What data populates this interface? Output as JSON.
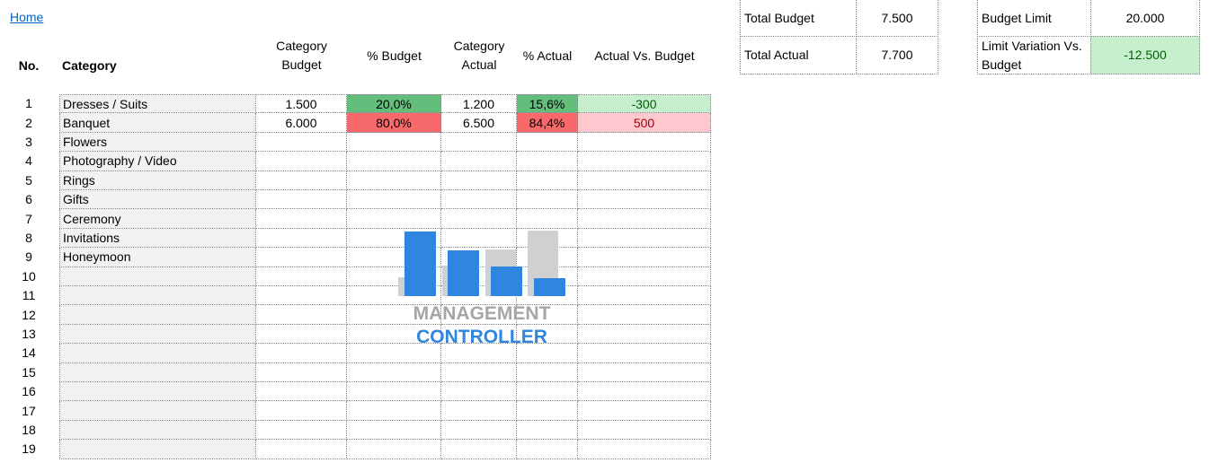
{
  "nav": {
    "home": "Home"
  },
  "table": {
    "headers": {
      "no": "No.",
      "category": "Category",
      "budget": "Category Budget",
      "pct_budget": "% Budget",
      "actual": "Category Actual",
      "pct_actual": "% Actual",
      "variance": "Actual Vs. Budget"
    },
    "rows": [
      {
        "no": 1,
        "category": "Dresses / Suits",
        "budget": "1.500",
        "pct_budget": "20,0%",
        "actual": "1.200",
        "pct_actual": "15,6%",
        "variance": "-300",
        "fills": {
          "pct_budget": "#63be7b",
          "pct_actual": "#63be7b",
          "variance": "#c6efce"
        },
        "text_colors": {
          "variance": "#006100"
        }
      },
      {
        "no": 2,
        "category": "Banquet",
        "budget": "6.000",
        "pct_budget": "80,0%",
        "actual": "6.500",
        "pct_actual": "84,4%",
        "variance": "500",
        "fills": {
          "pct_budget": "#f8696b",
          "pct_actual": "#f8696b",
          "variance": "#ffc7ce"
        },
        "text_colors": {
          "variance": "#9c0006"
        }
      },
      {
        "no": 3,
        "category": "Flowers"
      },
      {
        "no": 4,
        "category": "Photography / Video"
      },
      {
        "no": 5,
        "category": "Rings"
      },
      {
        "no": 6,
        "category": "Gifts"
      },
      {
        "no": 7,
        "category": "Ceremony"
      },
      {
        "no": 8,
        "category": "Invitations"
      },
      {
        "no": 9,
        "category": "Honeymoon"
      },
      {
        "no": 10
      },
      {
        "no": 11
      },
      {
        "no": 12
      },
      {
        "no": 13
      },
      {
        "no": 14
      },
      {
        "no": 15
      },
      {
        "no": 16
      },
      {
        "no": 17
      },
      {
        "no": 18
      },
      {
        "no": 19
      }
    ]
  },
  "summary": {
    "total_budget": {
      "label": "Total Budget",
      "value": "7.500"
    },
    "total_actual": {
      "label": "Total Actual",
      "value": "7.700"
    },
    "budget_limit": {
      "label": "Budget Limit",
      "value": "20.000"
    },
    "limit_variation": {
      "label": "Limit Variation Vs. Budget",
      "value": "-12.500",
      "fill": "#c6efce",
      "text_color": "#006100"
    }
  },
  "logo": {
    "line1": "MANAGEMENT",
    "line2": "CONTROLLER"
  }
}
